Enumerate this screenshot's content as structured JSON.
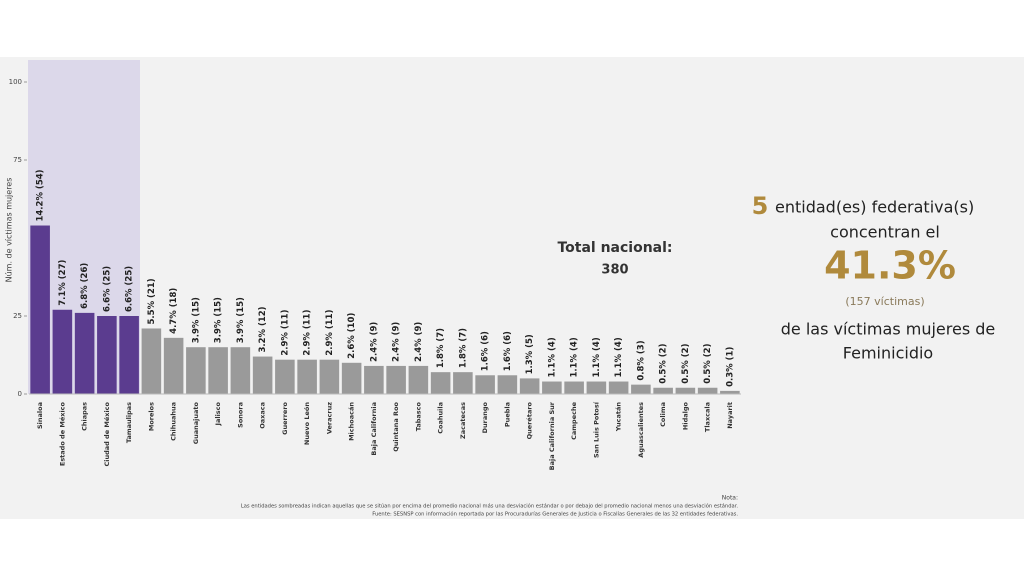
{
  "chart_data": {
    "type": "bar",
    "y_label": "Núm. de víctimas mujeres",
    "categories": [
      "Sinaloa",
      "Estado de México",
      "Chiapas",
      "Ciudad de México",
      "Tamaulipas",
      "Morelos",
      "Chihuahua",
      "Guanajuato",
      "Jalisco",
      "Sonora",
      "Oaxaca",
      "Guerrero",
      "Nuevo León",
      "Veracruz",
      "Michoacán",
      "Baja California",
      "Quintana Roo",
      "Tabasco",
      "Coahuila",
      "Zacatecas",
      "Durango",
      "Puebla",
      "Querétaro",
      "Baja California Sur",
      "Campeche",
      "San Luis Potosí",
      "Yucatán",
      "Aguascalientes",
      "Colima",
      "Hidalgo",
      "Tlaxcala",
      "Nayarit"
    ],
    "values": [
      54,
      27,
      26,
      25,
      25,
      21,
      18,
      15,
      15,
      15,
      12,
      11,
      11,
      11,
      10,
      9,
      9,
      9,
      7,
      7,
      6,
      6,
      5,
      4,
      4,
      4,
      4,
      3,
      2,
      2,
      2,
      1
    ],
    "value_labels": [
      "14.2% (54)",
      "7.1% (27)",
      "6.8% (26)",
      "6.6% (25)",
      "6.6% (25)",
      "5.5% (21)",
      "4.7% (18)",
      "3.9% (15)",
      "3.9% (15)",
      "3.9% (15)",
      "3.2% (12)",
      "2.9% (11)",
      "2.9% (11)",
      "2.9% (11)",
      "2.6% (10)",
      "2.4% (9)",
      "2.4% (9)",
      "2.4% (9)",
      "1.8% (7)",
      "1.8% (7)",
      "1.6% (6)",
      "1.6% (6)",
      "1.3% (5)",
      "1.1% (4)",
      "1.1% (4)",
      "1.1% (4)",
      "1.1% (4)",
      "0.8% (3)",
      "0.5% (2)",
      "0.5% (2)",
      "0.5% (2)",
      "0.3% (1)"
    ],
    "colors": [
      "#5b3c8f",
      "#5b3c8f",
      "#5b3c8f",
      "#5b3c8f",
      "#5b3c8f",
      "#9a9a9a",
      "#9a9a9a",
      "#9a9a9a",
      "#9a9a9a",
      "#9a9a9a",
      "#9a9a9a",
      "#9a9a9a",
      "#9a9a9a",
      "#9a9a9a",
      "#9a9a9a",
      "#9a9a9a",
      "#9a9a9a",
      "#9a9a9a",
      "#9a9a9a",
      "#9a9a9a",
      "#9a9a9a",
      "#9a9a9a",
      "#9a9a9a",
      "#9a9a9a",
      "#9a9a9a",
      "#9a9a9a",
      "#9a9a9a",
      "#9a9a9a",
      "#9a9a9a",
      "#9a9a9a",
      "#9a9a9a",
      "#9a9a9a"
    ],
    "ylim": [
      0,
      100
    ],
    "yticks": [
      0,
      25,
      75,
      100
    ],
    "total_label": "Total nacional:",
    "total": 380,
    "summary": {
      "count": 5,
      "line1": "entidad(es)  federativa(s)",
      "line2": "concentran el",
      "percent": "41.3%",
      "victims": "(157  víctimas)",
      "line3": "de las  víctimas  mujeres de",
      "line4": "Feminicidio"
    },
    "note_title": "Nota:",
    "note": "Las entidades sombreadas indican aquellas que se sitúan por encima del promedio nacional más una desviación estándar o por debajo del promedio nacional menos una desviación estándar.",
    "source": "Fuente: SESNSP con información reportada por las Procuradurías Generales de Justicia o Fiscalías Generales de las 32 entidades federativas."
  }
}
